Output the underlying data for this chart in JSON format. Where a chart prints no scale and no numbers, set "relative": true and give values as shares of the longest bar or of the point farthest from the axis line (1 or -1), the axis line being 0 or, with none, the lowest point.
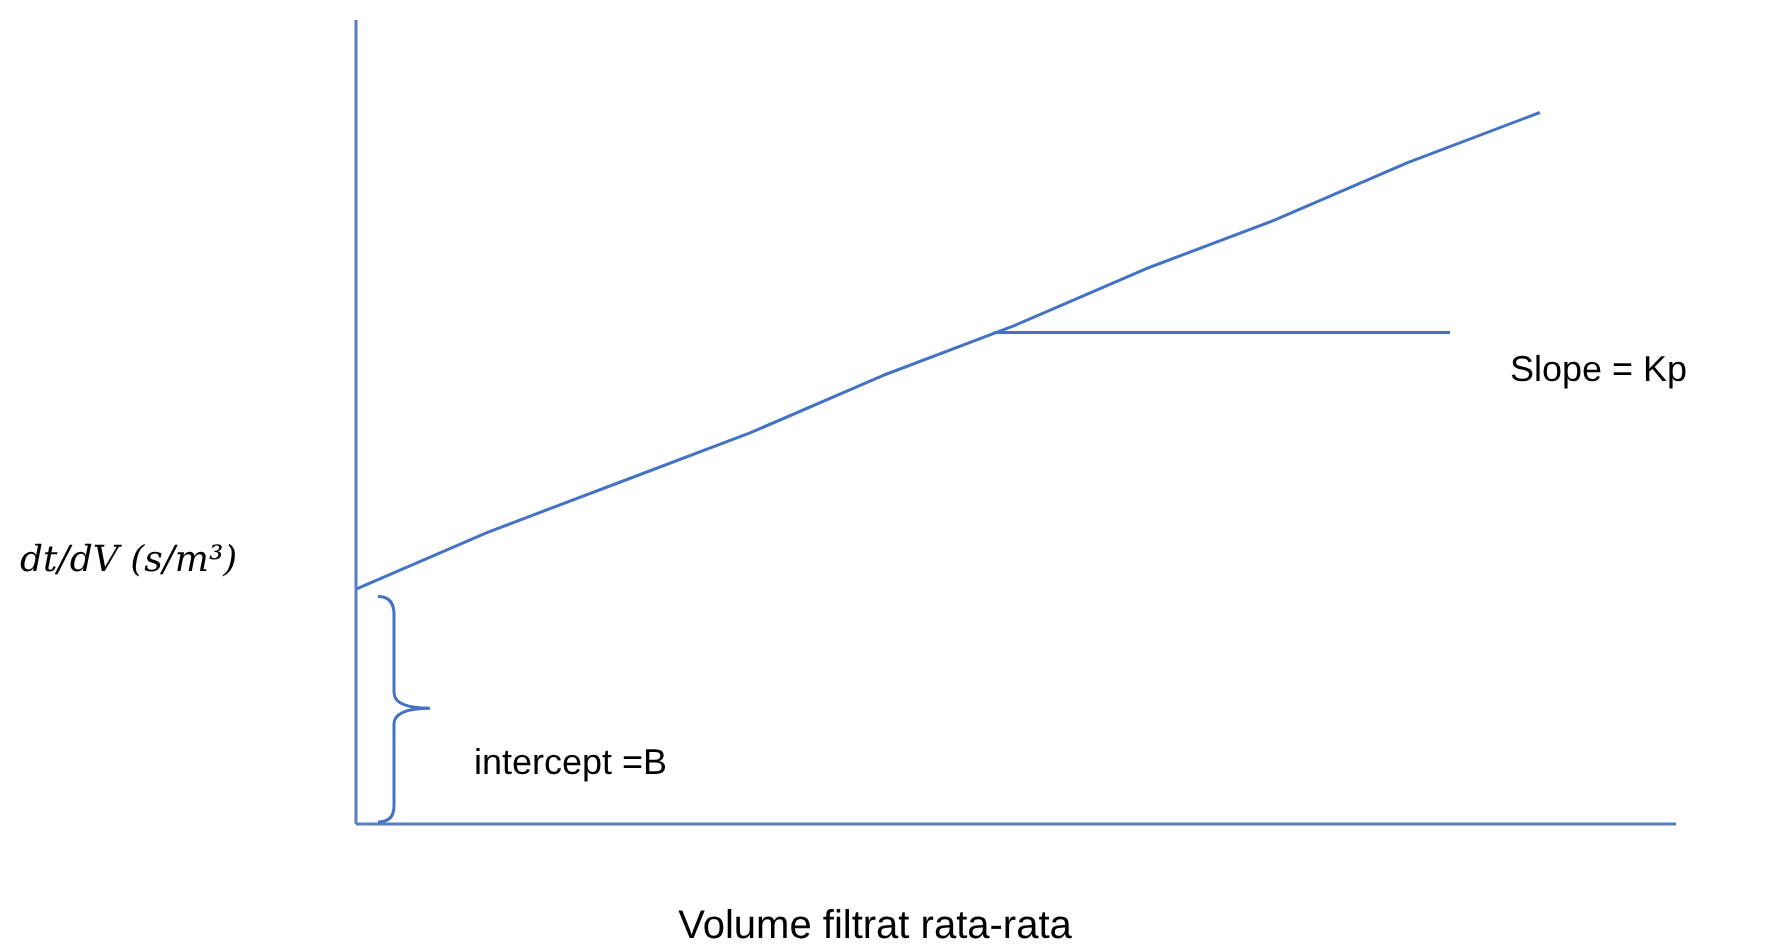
{
  "chart_data": {
    "type": "line",
    "relative": true,
    "xlabel": "Volume filtrat rata-rata",
    "ylabel": "dt/dV (s/m³)",
    "categories": [
      null,
      null,
      null,
      null,
      null,
      null,
      null,
      null,
      null,
      null
    ],
    "series": [
      {
        "color": "#4472c4",
        "values": [
          0.33,
          0.41,
          0.48,
          0.55,
          0.63,
          0.7,
          0.78,
          0.85,
          0.93,
          1
        ]
      }
    ],
    "annotations": [
      "Slope = Kp",
      "intercept =B"
    ],
    "marker": "none",
    "grid": false,
    "legend": false
  }
}
